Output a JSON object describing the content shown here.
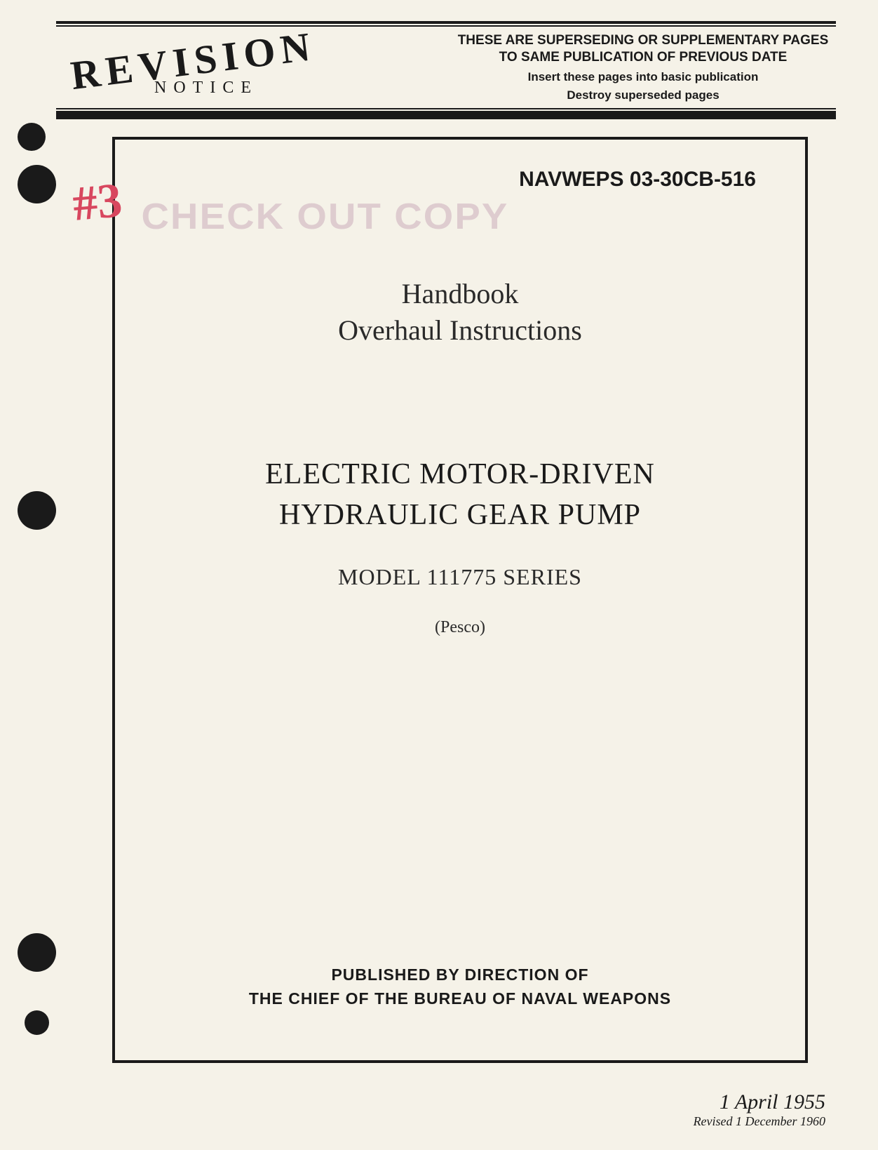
{
  "header": {
    "revision_label": "REVISION",
    "notice_label": "NOTICE",
    "supersede_line1": "THESE ARE SUPERSEDING OR SUPPLEMENTARY PAGES TO SAME PUBLICATION OF PREVIOUS DATE",
    "supersede_line2": "Insert these pages into basic publication",
    "supersede_line3": "Destroy superseded pages"
  },
  "document": {
    "number": "NAVWEPS 03-30CB-516",
    "handwritten_annotation": "#3",
    "stamp_text": "CHECK OUT COPY",
    "handbook_line1": "Handbook",
    "handbook_line2": "Overhaul Instructions",
    "title_line1": "ELECTRIC MOTOR-DRIVEN",
    "title_line2": "HYDRAULIC GEAR PUMP",
    "model": "MODEL 111775 SERIES",
    "manufacturer": "(Pesco)",
    "publisher_line1": "PUBLISHED BY DIRECTION OF",
    "publisher_line2": "THE CHIEF OF THE BUREAU OF NAVAL WEAPONS"
  },
  "dates": {
    "original": "1 April 1955",
    "revised": "Revised 1 December 1960"
  }
}
